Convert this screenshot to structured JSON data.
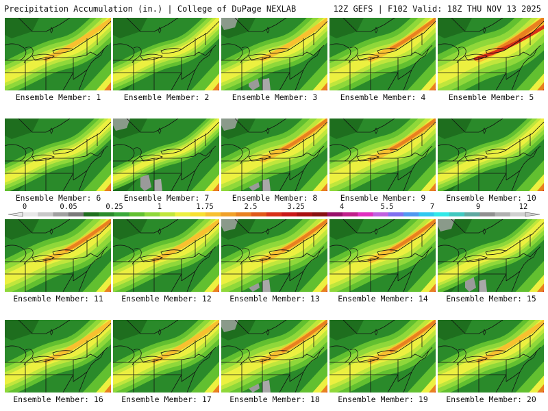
{
  "header": {
    "title": "Precipitation Accumulation (in.) | College of DuPage NEXLAB",
    "run_info": "12Z GEFS | F102 Valid: 18Z THU NOV 13 2025"
  },
  "members": [
    {
      "label": "Ensemble Member: 1",
      "intensity": 2
    },
    {
      "label": "Ensemble Member: 2",
      "intensity": 1
    },
    {
      "label": "Ensemble Member: 3",
      "intensity": 2
    },
    {
      "label": "Ensemble Member: 4",
      "intensity": 3
    },
    {
      "label": "Ensemble Member: 5",
      "intensity": 4
    },
    {
      "label": "Ensemble Member: 6",
      "intensity": 1
    },
    {
      "label": "Ensemble Member: 7",
      "intensity": 0
    },
    {
      "label": "Ensemble Member: 8",
      "intensity": 3
    },
    {
      "label": "Ensemble Member: 9",
      "intensity": 3
    },
    {
      "label": "Ensemble Member: 10",
      "intensity": 1
    },
    {
      "label": "Ensemble Member: 11",
      "intensity": 3
    },
    {
      "label": "Ensemble Member: 12",
      "intensity": 2
    },
    {
      "label": "Ensemble Member: 13",
      "intensity": 3
    },
    {
      "label": "Ensemble Member: 14",
      "intensity": 3
    },
    {
      "label": "Ensemble Member: 15",
      "intensity": 1
    },
    {
      "label": "Ensemble Member: 16",
      "intensity": 2
    },
    {
      "label": "Ensemble Member: 17",
      "intensity": 2
    },
    {
      "label": "Ensemble Member: 18",
      "intensity": 3
    },
    {
      "label": "Ensemble Member: 19",
      "intensity": 3
    },
    {
      "label": "Ensemble Member: 20",
      "intensity": 2
    }
  ],
  "colorbar": {
    "labels": [
      "0",
      "0.05",
      "0.25",
      "1",
      "1.75",
      "2.5",
      "3.25",
      "4",
      "5.5",
      "7",
      "9",
      "12"
    ],
    "colors": [
      "#e8e8e8",
      "#c8c8c8",
      "#a0a0a0",
      "#7a7a7a",
      "#1e6e1e",
      "#2a8a2a",
      "#3aa83a",
      "#62c030",
      "#8fd83a",
      "#c0e63c",
      "#ecf040",
      "#f8e030",
      "#f8c030",
      "#f0a028",
      "#e88020",
      "#e05818",
      "#d83018",
      "#c81818",
      "#a81010",
      "#881010",
      "#98106a",
      "#c0208a",
      "#e030c0",
      "#c060e0",
      "#8070f0",
      "#5098f0",
      "#30c8f0",
      "#30e8e8",
      "#40c8c0",
      "#60a8a0",
      "#909090",
      "#b0b0b0",
      "#d0d0d0"
    ]
  }
}
